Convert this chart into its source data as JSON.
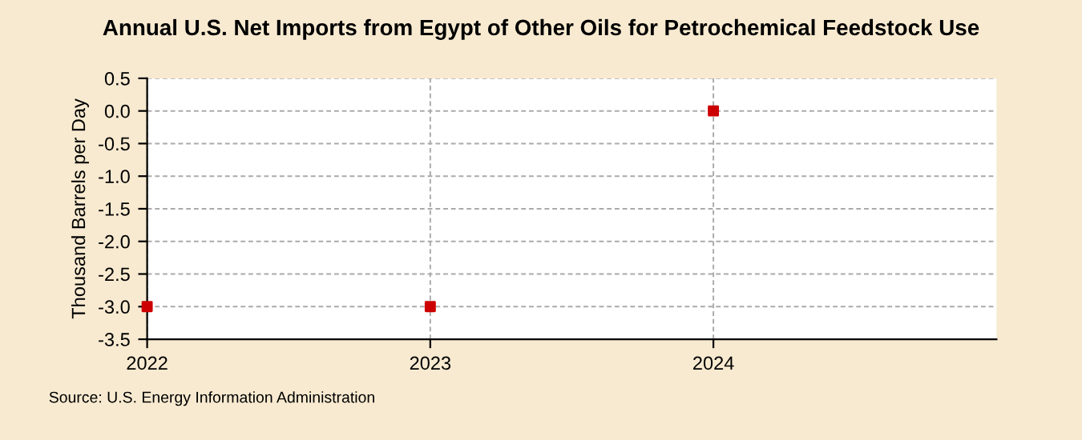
{
  "chart_data": {
    "type": "scatter",
    "title": "Annual U.S. Net Imports from Egypt of Other Oils for Petrochemical Feedstock Use",
    "ylabel": "Thousand Barrels per Day",
    "x": [
      2022,
      2023,
      2024
    ],
    "series": [
      {
        "color": "#cc0000",
        "values": [
          -3.0,
          -3.0,
          0.0
        ]
      }
    ],
    "xlim": [
      2022,
      2025
    ],
    "xticks": [
      2022,
      2023,
      2024
    ],
    "ylim": [
      -3.5,
      0.5
    ],
    "yticks": [
      {
        "value": -3.5,
        "label": "-3.5"
      },
      {
        "value": -3.0,
        "label": "-3.0"
      },
      {
        "value": -2.5,
        "label": "-2.5"
      },
      {
        "value": -2.0,
        "label": "-2.0"
      },
      {
        "value": -1.5,
        "label": "-1.5"
      },
      {
        "value": -1.0,
        "label": "-1.0"
      },
      {
        "value": -0.5,
        "label": "-0.5"
      },
      {
        "value": 0.0,
        "label": "0.0"
      },
      {
        "value": 0.5,
        "label": "0.5"
      }
    ],
    "grid": true,
    "marker": "square",
    "annotations": [
      "Source: U.S. Energy Information Administration"
    ]
  }
}
